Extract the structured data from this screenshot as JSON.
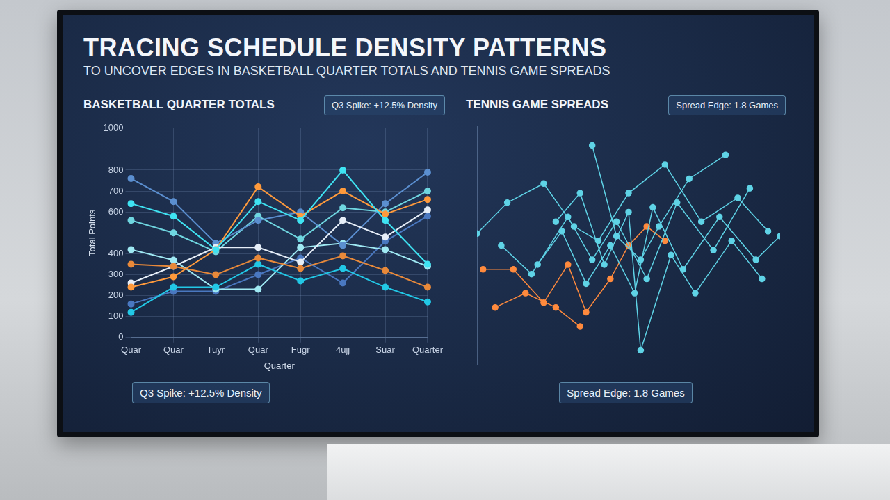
{
  "header": {
    "title": "TRACING SCHEDULE DENSITY PATTERNS",
    "subtitle": "TO UNCOVER EDGES IN BASKETBALL QUARTER TOTALS AND TENNIS GAME SPREADS"
  },
  "chart_data": [
    {
      "type": "line",
      "title": "BASKETBALL QUARTER TOTALS",
      "x_label": "Quarter",
      "y_label": "Total Points",
      "categories": [
        "Quar",
        "Quar",
        "Tuyr",
        "Quar",
        "Fugr",
        "4ujj",
        "Suar",
        "Quarter"
      ],
      "series": [
        {
          "color": "#3fe3f2",
          "values": [
            640,
            580,
            420,
            650,
            560,
            800,
            560,
            350
          ]
        },
        {
          "color": "#ff9a3c",
          "values": [
            240,
            290,
            420,
            720,
            580,
            700,
            590,
            660
          ]
        },
        {
          "color": "#e8893a",
          "values": [
            350,
            340,
            300,
            380,
            330,
            390,
            320,
            240
          ]
        },
        {
          "color": "#e6eef8",
          "values": [
            260,
            340,
            430,
            430,
            360,
            560,
            480,
            610
          ]
        },
        {
          "color": "#5b8fd0",
          "values": [
            760,
            650,
            450,
            560,
            600,
            440,
            640,
            790
          ]
        },
        {
          "color": "#22c8e6",
          "values": [
            120,
            240,
            240,
            350,
            270,
            330,
            240,
            170
          ]
        },
        {
          "color": "#6fd6e0",
          "values": [
            560,
            500,
            410,
            580,
            470,
            620,
            600,
            700
          ]
        },
        {
          "color": "#9fe9f3",
          "values": [
            420,
            370,
            230,
            230,
            430,
            450,
            420,
            340
          ]
        },
        {
          "color": "#4a78c0",
          "values": [
            160,
            220,
            220,
            300,
            380,
            260,
            460,
            580
          ]
        }
      ],
      "ylim": [
        0,
        1000
      ],
      "yticks": [
        0,
        100,
        200,
        300,
        400,
        600,
        700,
        800,
        1000
      ],
      "grid": true,
      "marker": "circle",
      "annotations": [
        "Q3 Spike: +12.5% Density",
        "Q3 Spike: +12.5% Density"
      ]
    },
    {
      "type": "scatter",
      "title": "TENNIS GAME SPREADS",
      "series": [
        {
          "color": "#5fd3e6",
          "x": [
            0,
            10,
            22,
            32,
            40,
            50,
            62,
            74,
            86,
            96
          ],
          "values": [
            55,
            68,
            76,
            58,
            52,
            72,
            84,
            60,
            70,
            56
          ]
        },
        {
          "color": "#5fd3e6",
          "x": [
            8,
            18,
            30,
            38,
            46,
            56,
            66,
            78,
            90
          ],
          "values": [
            50,
            38,
            62,
            44,
            60,
            36,
            68,
            48,
            74
          ]
        },
        {
          "color": "#5fd3e6",
          "x": [
            20,
            28,
            36,
            44,
            52,
            58,
            68,
            80,
            92,
            100
          ],
          "values": [
            42,
            56,
            34,
            50,
            30,
            66,
            40,
            62,
            44,
            54
          ]
        },
        {
          "color": "#5fd3e6",
          "x": [
            26,
            34,
            42,
            50,
            54,
            64,
            72,
            84,
            94
          ],
          "values": [
            60,
            72,
            42,
            64,
            6,
            46,
            30,
            52,
            36
          ]
        },
        {
          "color": "#5fd3e6",
          "x": [
            38,
            46,
            54,
            60,
            70,
            82
          ],
          "values": [
            92,
            54,
            44,
            58,
            78,
            88
          ]
        },
        {
          "color": "#ff8a3d",
          "x": [
            2,
            12,
            22,
            30,
            36,
            44,
            50,
            56,
            62
          ],
          "values": [
            40,
            40,
            26,
            42,
            22,
            36,
            50,
            58,
            52
          ]
        },
        {
          "color": "#ff8a3d",
          "x": [
            6,
            16,
            26,
            34
          ],
          "values": [
            24,
            30,
            24,
            16
          ]
        }
      ],
      "xlim": [
        0,
        100
      ],
      "ylim": [
        0,
        100
      ],
      "grid": false,
      "tick_labels": false,
      "marker": "circle",
      "line_style": "solid",
      "annotations": [
        "Spread Edge: 1.8 Games",
        "Spread Edge: 1.8 Games"
      ]
    }
  ]
}
